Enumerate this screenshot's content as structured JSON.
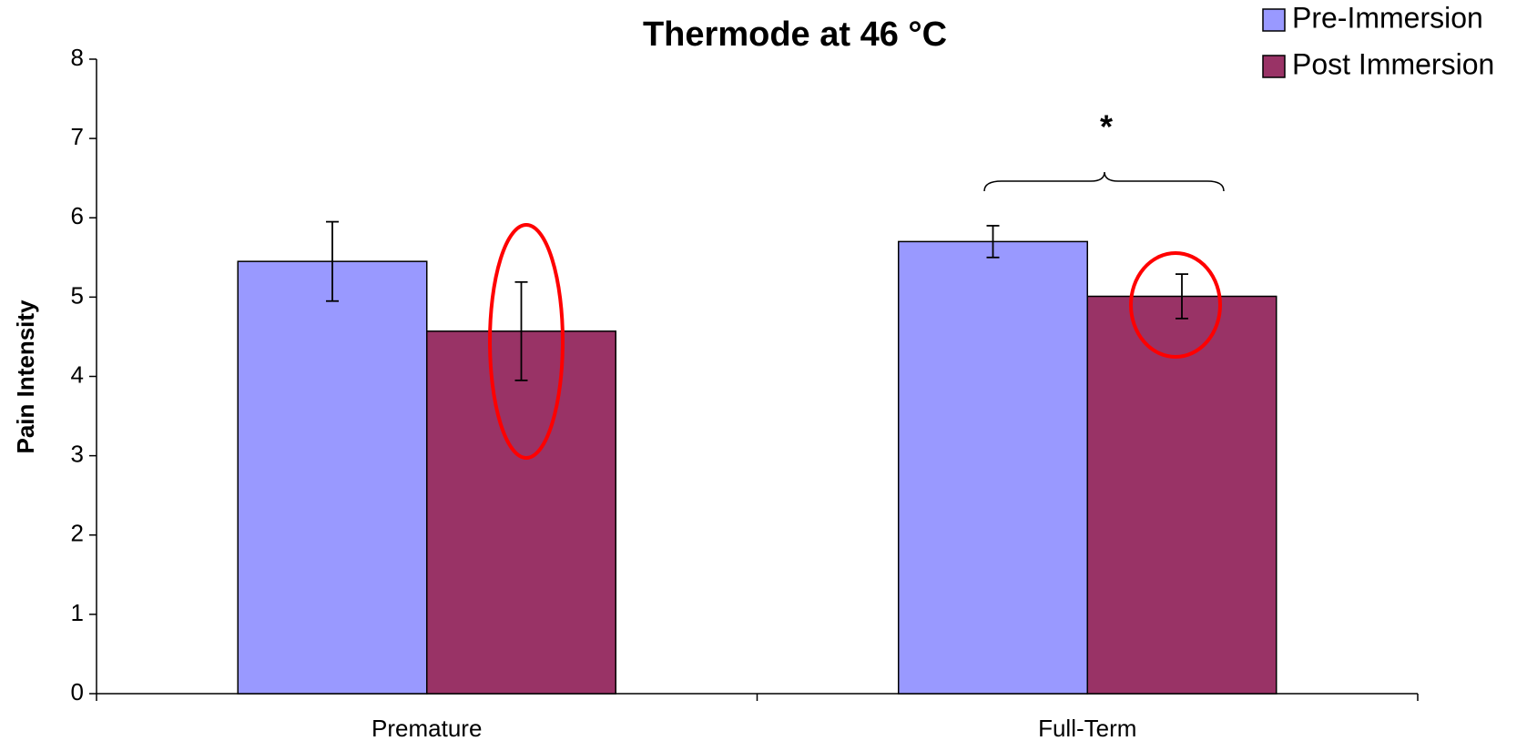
{
  "chart_data": {
    "type": "bar",
    "title": "Thermode at 46 °C",
    "y_label": "Pain Intensity",
    "categories": [
      "Premature",
      "Full-Term"
    ],
    "series": [
      {
        "name": "Pre-Immersion",
        "color": "#9999ff",
        "values": [
          5.45,
          5.7
        ],
        "errors": [
          0.5,
          0.2
        ]
      },
      {
        "name": "Post Immersion",
        "color": "#993366",
        "values": [
          4.57,
          5.01
        ],
        "errors": [
          0.62,
          0.28
        ]
      }
    ],
    "ylim": [
      0,
      8
    ],
    "yticks": [
      0,
      1,
      2,
      3,
      4,
      5,
      6,
      7,
      8
    ],
    "annotations": [
      "*"
    ],
    "legend": "top-right"
  }
}
